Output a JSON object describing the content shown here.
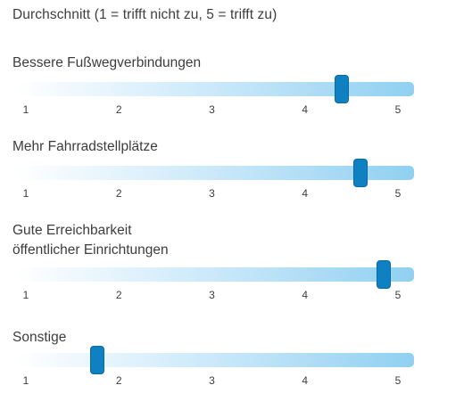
{
  "title": "Durchschnitt (1 = trifft nicht zu, 5 = trifft zu)",
  "chart_data": {
    "type": "slider",
    "title": "Durchschnitt (1 = trifft nicht zu, 5 = trifft zu)",
    "scale": {
      "min": 1,
      "max": 5,
      "ticks": [
        "1",
        "2",
        "3",
        "4",
        "5"
      ]
    },
    "items": [
      {
        "label": "Bessere Fußwegverbindungen",
        "value": 4.4
      },
      {
        "label": "Mehr Fahrradstellplätze",
        "value": 4.6
      },
      {
        "label": "Gute Erreichbarkeit\nöffentlicher Einrichtungen",
        "value": 4.85
      },
      {
        "label": "Sonstige",
        "value": 1.77
      }
    ],
    "colors": {
      "thumb": "#0f80c2",
      "track_end": "#90d0f1"
    }
  }
}
